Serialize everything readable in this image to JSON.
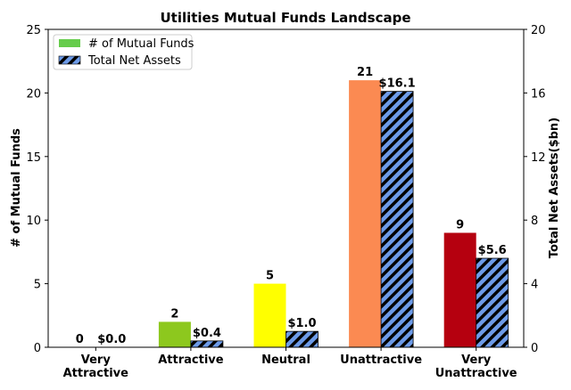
{
  "chart_data": {
    "type": "bar",
    "title": "Utilities Mutual Funds Landscape",
    "categories": [
      [
        "Very",
        "Attractive"
      ],
      [
        "Attractive"
      ],
      [
        "Neutral"
      ],
      [
        "Unattractive"
      ],
      [
        "Very",
        "Unattractive"
      ]
    ],
    "series": [
      {
        "name": "# of Mutual Funds",
        "axis": "left",
        "values": [
          0,
          2,
          5,
          21,
          9
        ],
        "labels": [
          "0",
          "2",
          "5",
          "21",
          "9"
        ],
        "colors": [
          "#66cc4c",
          "#8dc81e",
          "#ffff00",
          "#fb8a52",
          "#b5000f"
        ],
        "legend_color": "#66cc4c"
      },
      {
        "name": "Total Net Assets",
        "axis": "right",
        "values": [
          0.0,
          0.4,
          1.0,
          16.1,
          5.6
        ],
        "labels": [
          "$0.0",
          "$0.4",
          "$1.0",
          "$16.1",
          "$5.6"
        ],
        "color": "#6d9be8",
        "hatch_color": "#000000",
        "hatch": "diagonal"
      }
    ],
    "ylabel_left": "# of Mutual Funds",
    "ylabel_right": "Total Net Assets($bn)",
    "ylim_left": [
      0,
      25
    ],
    "ylim_right": [
      0,
      20
    ],
    "yticks_left": [
      "0",
      "5",
      "10",
      "15",
      "20",
      "25"
    ],
    "yticks_right": [
      "0",
      "4",
      "8",
      "12",
      "16",
      "20"
    ],
    "legend_position": "top-left",
    "grid": false
  }
}
